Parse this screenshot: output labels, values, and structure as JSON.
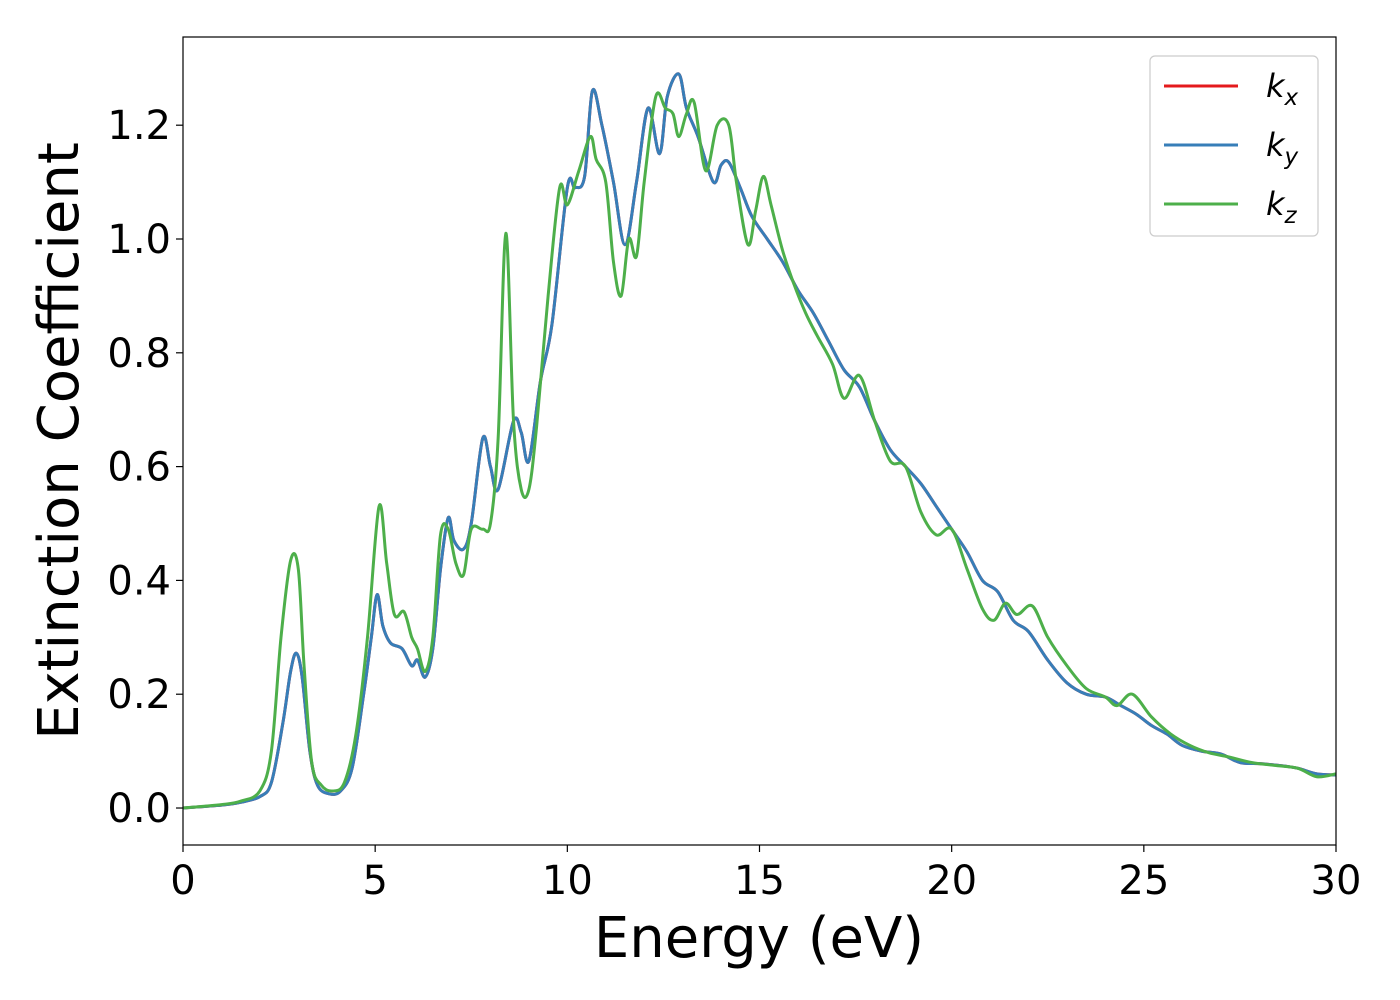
{
  "chart_data": {
    "type": "line",
    "title": "",
    "xlabel": "Energy (eV)",
    "ylabel": "Extinction Coefficient",
    "xlim": [
      0,
      30
    ],
    "ylim": [
      -0.065,
      1.355
    ],
    "xticks": [
      0,
      5,
      10,
      15,
      20,
      25,
      30
    ],
    "xtick_labels": [
      "0",
      "5",
      "10",
      "15",
      "20",
      "25",
      "30"
    ],
    "yticks": [
      0.0,
      0.2,
      0.4,
      0.6,
      0.8,
      1.0,
      1.2
    ],
    "ytick_labels": [
      "0.0",
      "0.2",
      "0.4",
      "0.6",
      "0.8",
      "1.0",
      "1.2"
    ],
    "grid": false,
    "legend_position": "top-right",
    "series": [
      {
        "name": "k",
        "subscript": "x",
        "color": "#e41a1c",
        "x": [
          0,
          1,
          1.5,
          2,
          2.3,
          2.6,
          2.8,
          2.95,
          3.1,
          3.3,
          3.5,
          3.8,
          4.1,
          4.4,
          4.7,
          4.9,
          5.05,
          5.2,
          5.4,
          5.7,
          5.95,
          6.1,
          6.3,
          6.5,
          6.7,
          6.9,
          7.05,
          7.3,
          7.5,
          7.8,
          8.0,
          8.2,
          8.6,
          8.8,
          9.0,
          9.3,
          9.6,
          10.0,
          10.2,
          10.45,
          10.65,
          10.9,
          11.2,
          11.5,
          11.8,
          12.1,
          12.4,
          12.6,
          12.9,
          13.1,
          13.4,
          13.8,
          14.0,
          14.2,
          14.5,
          14.8,
          15.2,
          15.6,
          16.0,
          16.4,
          16.8,
          17.2,
          17.6,
          18.0,
          18.4,
          18.8,
          19.2,
          19.6,
          20.0,
          20.4,
          20.8,
          21.2,
          21.6,
          22.0,
          22.5,
          23.0,
          23.5,
          24.0,
          24.4,
          24.8,
          25.2,
          25.6,
          26.0,
          26.5,
          27.0,
          27.5,
          28.0,
          28.5,
          29.0,
          29.5,
          30.0
        ],
        "y": [
          0.0,
          0.005,
          0.01,
          0.02,
          0.045,
          0.15,
          0.24,
          0.272,
          0.23,
          0.1,
          0.04,
          0.025,
          0.03,
          0.07,
          0.2,
          0.3,
          0.375,
          0.32,
          0.29,
          0.28,
          0.25,
          0.26,
          0.23,
          0.28,
          0.42,
          0.51,
          0.47,
          0.455,
          0.5,
          0.65,
          0.6,
          0.56,
          0.68,
          0.66,
          0.61,
          0.75,
          0.85,
          1.09,
          1.09,
          1.11,
          1.26,
          1.2,
          1.1,
          0.99,
          1.1,
          1.23,
          1.15,
          1.25,
          1.29,
          1.23,
          1.18,
          1.1,
          1.13,
          1.135,
          1.09,
          1.04,
          1.0,
          0.96,
          0.91,
          0.87,
          0.82,
          0.77,
          0.74,
          0.68,
          0.63,
          0.6,
          0.57,
          0.53,
          0.49,
          0.45,
          0.4,
          0.38,
          0.33,
          0.31,
          0.26,
          0.22,
          0.2,
          0.195,
          0.18,
          0.165,
          0.145,
          0.13,
          0.11,
          0.1,
          0.095,
          0.08,
          0.078,
          0.075,
          0.07,
          0.06,
          0.058
        ]
      },
      {
        "name": "k",
        "subscript": "y",
        "color": "#377eb8",
        "x": [
          0,
          1,
          1.5,
          2,
          2.3,
          2.6,
          2.8,
          2.95,
          3.1,
          3.3,
          3.5,
          3.8,
          4.1,
          4.4,
          4.7,
          4.9,
          5.05,
          5.2,
          5.4,
          5.7,
          5.95,
          6.1,
          6.3,
          6.5,
          6.7,
          6.9,
          7.05,
          7.3,
          7.5,
          7.8,
          8.0,
          8.2,
          8.6,
          8.8,
          9.0,
          9.3,
          9.6,
          10.0,
          10.2,
          10.45,
          10.65,
          10.9,
          11.2,
          11.5,
          11.8,
          12.1,
          12.4,
          12.6,
          12.9,
          13.1,
          13.4,
          13.8,
          14.0,
          14.2,
          14.5,
          14.8,
          15.2,
          15.6,
          16.0,
          16.4,
          16.8,
          17.2,
          17.6,
          18.0,
          18.4,
          18.8,
          19.2,
          19.6,
          20.0,
          20.4,
          20.8,
          21.2,
          21.6,
          22.0,
          22.5,
          23.0,
          23.5,
          24.0,
          24.4,
          24.8,
          25.2,
          25.6,
          26.0,
          26.5,
          27.0,
          27.5,
          28.0,
          28.5,
          29.0,
          29.5,
          30.0
        ],
        "y": [
          0.0,
          0.005,
          0.01,
          0.02,
          0.045,
          0.15,
          0.24,
          0.272,
          0.23,
          0.1,
          0.04,
          0.025,
          0.03,
          0.07,
          0.2,
          0.3,
          0.375,
          0.32,
          0.29,
          0.28,
          0.25,
          0.26,
          0.23,
          0.28,
          0.42,
          0.51,
          0.47,
          0.455,
          0.5,
          0.65,
          0.6,
          0.56,
          0.68,
          0.66,
          0.61,
          0.75,
          0.85,
          1.09,
          1.09,
          1.11,
          1.26,
          1.2,
          1.1,
          0.99,
          1.1,
          1.23,
          1.15,
          1.25,
          1.29,
          1.23,
          1.18,
          1.1,
          1.13,
          1.135,
          1.09,
          1.04,
          1.0,
          0.96,
          0.91,
          0.87,
          0.82,
          0.77,
          0.74,
          0.68,
          0.63,
          0.6,
          0.57,
          0.53,
          0.49,
          0.45,
          0.4,
          0.38,
          0.33,
          0.31,
          0.26,
          0.22,
          0.2,
          0.195,
          0.18,
          0.165,
          0.145,
          0.13,
          0.11,
          0.1,
          0.095,
          0.08,
          0.078,
          0.075,
          0.07,
          0.06,
          0.058
        ]
      },
      {
        "name": "k",
        "subscript": "z",
        "color": "#4daf4a",
        "x": [
          0,
          1,
          1.5,
          2,
          2.3,
          2.55,
          2.8,
          3.0,
          3.15,
          3.35,
          3.6,
          3.9,
          4.2,
          4.5,
          4.8,
          5.1,
          5.3,
          5.5,
          5.75,
          5.95,
          6.1,
          6.3,
          6.5,
          6.7,
          6.9,
          7.1,
          7.3,
          7.5,
          7.8,
          8.0,
          8.2,
          8.4,
          8.6,
          8.8,
          9.0,
          9.2,
          9.5,
          9.8,
          10.0,
          10.3,
          10.6,
          10.75,
          11.0,
          11.2,
          11.4,
          11.6,
          11.8,
          12.0,
          12.3,
          12.55,
          12.75,
          12.9,
          13.1,
          13.3,
          13.6,
          13.9,
          14.2,
          14.4,
          14.7,
          14.9,
          15.1,
          15.3,
          15.6,
          15.9,
          16.2,
          16.5,
          16.9,
          17.2,
          17.6,
          18.0,
          18.4,
          18.8,
          19.2,
          19.6,
          20.0,
          20.4,
          20.8,
          21.1,
          21.4,
          21.7,
          22.1,
          22.5,
          23.0,
          23.5,
          24.0,
          24.3,
          24.7,
          25.2,
          25.7,
          26.2,
          26.7,
          27.2,
          27.8,
          28.4,
          29.0,
          29.5,
          30.0
        ],
        "y": [
          0.0,
          0.006,
          0.012,
          0.03,
          0.1,
          0.3,
          0.435,
          0.42,
          0.25,
          0.08,
          0.04,
          0.03,
          0.045,
          0.13,
          0.3,
          0.53,
          0.43,
          0.34,
          0.345,
          0.3,
          0.28,
          0.24,
          0.3,
          0.48,
          0.49,
          0.43,
          0.41,
          0.49,
          0.49,
          0.5,
          0.65,
          1.01,
          0.68,
          0.56,
          0.56,
          0.67,
          0.9,
          1.09,
          1.06,
          1.12,
          1.18,
          1.14,
          1.1,
          0.96,
          0.9,
          1.0,
          0.97,
          1.1,
          1.25,
          1.23,
          1.22,
          1.18,
          1.22,
          1.24,
          1.12,
          1.2,
          1.2,
          1.1,
          0.99,
          1.05,
          1.11,
          1.06,
          0.98,
          0.92,
          0.87,
          0.83,
          0.78,
          0.72,
          0.76,
          0.68,
          0.61,
          0.6,
          0.52,
          0.48,
          0.49,
          0.42,
          0.35,
          0.33,
          0.36,
          0.34,
          0.355,
          0.3,
          0.25,
          0.21,
          0.195,
          0.18,
          0.2,
          0.16,
          0.13,
          0.11,
          0.097,
          0.09,
          0.08,
          0.075,
          0.07,
          0.055,
          0.06
        ]
      }
    ]
  }
}
